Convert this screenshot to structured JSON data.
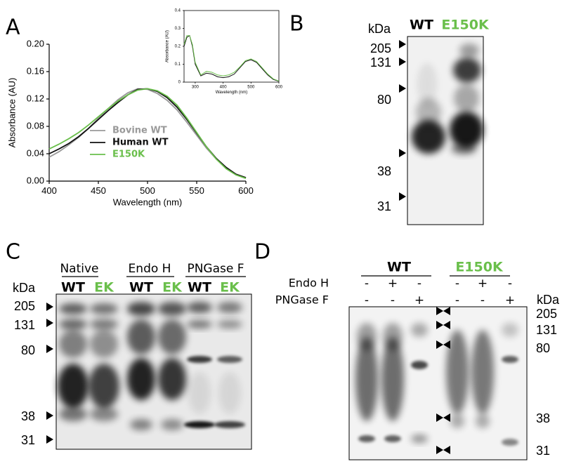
{
  "chart_data": [
    {
      "type": "line",
      "xlabel": "Wavelength (nm)",
      "ylabel": "Absorbance (AU)",
      "x": [
        400,
        410,
        420,
        430,
        440,
        450,
        460,
        470,
        480,
        490,
        500,
        510,
        520,
        530,
        540,
        550,
        560,
        570,
        580,
        590,
        600
      ],
      "series": [
        {
          "name": "Bovine WT",
          "color": "#9a9a9a",
          "values": [
            0.035,
            0.043,
            0.053,
            0.064,
            0.077,
            0.092,
            0.106,
            0.119,
            0.129,
            0.135,
            0.134,
            0.128,
            0.118,
            0.104,
            0.086,
            0.067,
            0.048,
            0.032,
            0.019,
            0.01,
            0.005
          ]
        },
        {
          "name": "Human WT",
          "color": "#111111",
          "values": [
            0.04,
            0.047,
            0.055,
            0.065,
            0.077,
            0.09,
            0.103,
            0.115,
            0.126,
            0.134,
            0.135,
            0.131,
            0.122,
            0.108,
            0.09,
            0.07,
            0.05,
            0.033,
            0.02,
            0.01,
            0.005
          ]
        },
        {
          "name": "E150K",
          "color": "#6abf4b",
          "values": [
            0.047,
            0.054,
            0.062,
            0.071,
            0.082,
            0.094,
            0.106,
            0.117,
            0.126,
            0.133,
            0.135,
            0.132,
            0.124,
            0.111,
            0.092,
            0.071,
            0.05,
            0.032,
            0.018,
            0.009,
            0.004
          ]
        }
      ],
      "xlim": [
        400,
        600
      ],
      "xticks": [
        400,
        450,
        500,
        550,
        600
      ],
      "ylim": [
        0,
        0.2
      ],
      "yticks": [
        {
          "value": 0,
          "label": "0.00"
        },
        {
          "value": 0.04,
          "label": "0.04"
        },
        {
          "value": 0.08,
          "label": "0.08"
        },
        {
          "value": 0.12,
          "label": "0.12"
        },
        {
          "value": 0.16,
          "label": "0.16"
        },
        {
          "value": 0.2,
          "label": "0.20"
        }
      ],
      "legend": "lower-left"
    },
    {
      "type": "line",
      "xlabel": "Wavelength (nm)",
      "ylabel": "Absorbance (AU)",
      "x": [
        260,
        270,
        280,
        290,
        300,
        320,
        340,
        360,
        380,
        400,
        420,
        440,
        460,
        480,
        500,
        520,
        540,
        560,
        580,
        600
      ],
      "series": [
        {
          "color": "#111111",
          "values": [
            0.2,
            0.25,
            0.26,
            0.2,
            0.1,
            0.035,
            0.05,
            0.045,
            0.03,
            0.025,
            0.03,
            0.045,
            0.08,
            0.115,
            0.125,
            0.11,
            0.075,
            0.04,
            0.015,
            0.005
          ]
        },
        {
          "color": "#6abf4b",
          "values": [
            0.21,
            0.26,
            0.26,
            0.21,
            0.11,
            0.04,
            0.06,
            0.055,
            0.04,
            0.035,
            0.04,
            0.055,
            0.085,
            0.12,
            0.13,
            0.115,
            0.08,
            0.045,
            0.018,
            0.006
          ]
        }
      ],
      "xlim": [
        260,
        600
      ],
      "xticks": [
        300,
        400,
        500,
        600
      ],
      "ylim": [
        0,
        0.4
      ],
      "yticks": [
        0,
        0.1,
        0.2,
        0.3,
        0.4
      ]
    }
  ],
  "panel_labels": [
    "A",
    "B",
    "C",
    "D"
  ],
  "panel_b": {
    "unit": "kDa",
    "lanes": [
      "WT",
      "E150K"
    ],
    "markers": [
      "205",
      "131",
      "80",
      "38",
      "31"
    ]
  },
  "panel_c": {
    "unit": "kDa",
    "groups": [
      "Native",
      "Endo H",
      "PNGase F"
    ],
    "lanes": [
      "WT",
      "EK",
      "WT",
      "EK",
      "WT",
      "EK"
    ],
    "markers": [
      "205",
      "131",
      "80",
      "38",
      "31"
    ]
  },
  "panel_d": {
    "unit": "kDa",
    "groups": [
      "WT",
      "E150K"
    ],
    "treatments": [
      "Endo H",
      "PNGase F"
    ],
    "signs": [
      [
        "-",
        "+",
        "-",
        "-",
        "+",
        "-"
      ],
      [
        "-",
        "-",
        "+",
        "-",
        "-",
        "+"
      ]
    ],
    "markers": [
      "205",
      "131",
      "80",
      "38",
      "31"
    ]
  }
}
